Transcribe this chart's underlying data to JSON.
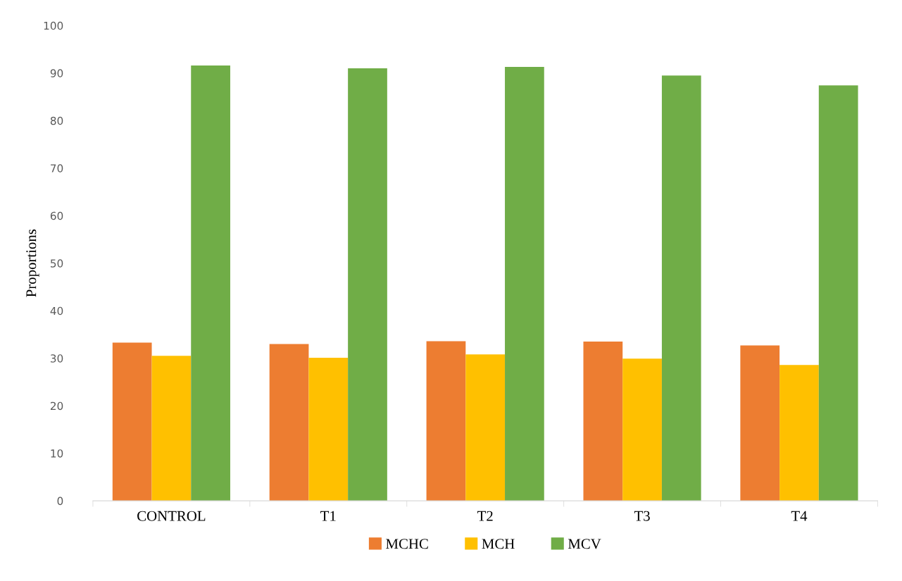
{
  "chart_data": {
    "type": "bar",
    "ylabel": "Proportions",
    "categories": [
      "CONTROL",
      "T1",
      "T2",
      "T3",
      "T4"
    ],
    "series": [
      {
        "name": "MCHC",
        "color": "#ed7d31",
        "values": [
          33.3,
          33.0,
          33.6,
          33.5,
          32.7
        ]
      },
      {
        "name": "MCH",
        "color": "#ffc000",
        "values": [
          30.5,
          30.1,
          30.8,
          29.9,
          28.6
        ]
      },
      {
        "name": "MCV",
        "color": "#70ad47",
        "values": [
          91.6,
          91.0,
          91.3,
          89.5,
          87.4
        ]
      }
    ],
    "ylim": [
      0,
      100
    ],
    "yticks": [
      0,
      10,
      20,
      30,
      40,
      50,
      60,
      70,
      80,
      90,
      100
    ],
    "grid": false,
    "legend": "bottom"
  }
}
